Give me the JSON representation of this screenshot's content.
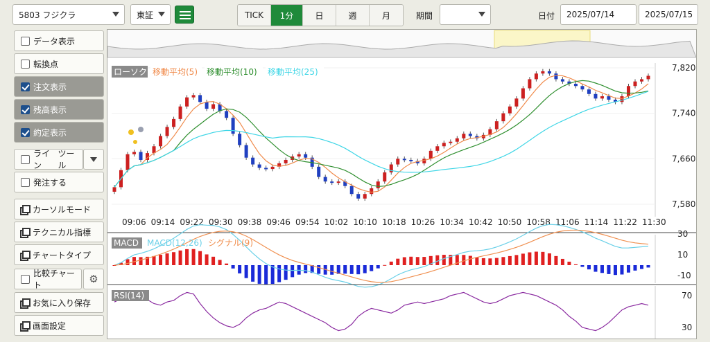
{
  "toolbar": {
    "stock_select": "5803 フジクラ",
    "market_select": "東証",
    "list_icon": "list-icon",
    "intervals": [
      "TICK",
      "1分",
      "日",
      "週",
      "月"
    ],
    "active_interval": "1分",
    "period_label": "期間",
    "period_value": "",
    "date_label": "日付",
    "date_from": "2025/07/14",
    "date_sep": "～",
    "date_to": "2025/07/15"
  },
  "sidebar": {
    "data_display": "データ表示",
    "turning_point": "転換点",
    "order_display": "注文表示",
    "position_display": "残高表示",
    "execution_display": "約定表示",
    "line_tool": "ライン",
    "tool_suffix": "ツール",
    "order": "発注する",
    "cursor_mode": "カーソルモード",
    "technical": "テクニカル指標",
    "chart_type": "チャートタイプ",
    "compare_chart": "比較チャート",
    "save_fav": "お気に入り保存",
    "screen_settings": "画面設定"
  },
  "colors": {
    "up": "#cc2020",
    "down": "#2040c0",
    "ma5": "#f08a4a",
    "ma10": "#2f8f2f",
    "ma25": "#3fd6e6",
    "macd": "#6ad0e8",
    "signal": "#f09050",
    "rsi": "#8a2aa0",
    "accent": "#1f8a3a"
  },
  "chart_data": {
    "type": "candlestick",
    "price_legend": [
      "ローソク",
      "移動平均(5)",
      "移動平均(10)",
      "移動平均(25)"
    ],
    "xticks": [
      "09:06",
      "09:14",
      "09:22",
      "09:30",
      "09:38",
      "09:46",
      "09:54",
      "10:02",
      "10:10",
      "10:18",
      "10:26",
      "10:34",
      "10:42",
      "10:50",
      "10:58",
      "11:06",
      "11:14",
      "11:22",
      "11:30"
    ],
    "yticks": [
      "7,820",
      "7,740",
      "7,660",
      "7,580"
    ],
    "price_path": [
      7610,
      7640,
      7668,
      7672,
      7658,
      7670,
      7682,
      7700,
      7716,
      7730,
      7752,
      7768,
      7772,
      7760,
      7748,
      7756,
      7744,
      7732,
      7704,
      7684,
      7662,
      7650,
      7644,
      7642,
      7646,
      7652,
      7658,
      7664,
      7668,
      7662,
      7646,
      7628,
      7620,
      7618,
      7620,
      7612,
      7598,
      7590,
      7598,
      7608,
      7620,
      7636,
      7650,
      7660,
      7658,
      7656,
      7652,
      7660,
      7674,
      7682,
      7688,
      7690,
      7696,
      7704,
      7700,
      7696,
      7702,
      7712,
      7726,
      7740,
      7752,
      7766,
      7784,
      7800,
      7810,
      7814,
      7810,
      7800,
      7796,
      7792,
      7788,
      7782,
      7774,
      7766,
      7770,
      7764,
      7760,
      7770,
      7788,
      7796,
      7800,
      7806
    ],
    "macd_legend": [
      "MACD",
      "MACD(12,26)",
      "シグナル(9)"
    ],
    "macd_yticks": [
      "30",
      "10",
      "-10"
    ],
    "rsi_legend": "RSI(14)",
    "rsi_yticks": [
      "70",
      "30"
    ],
    "rsi_path": [
      62,
      66,
      72,
      76,
      72,
      65,
      60,
      58,
      62,
      64,
      70,
      74,
      72,
      60,
      50,
      42,
      36,
      32,
      30,
      34,
      42,
      48,
      52,
      54,
      58,
      62,
      60,
      56,
      52,
      48,
      44,
      40,
      36,
      30,
      26,
      28,
      34,
      44,
      50,
      54,
      52,
      50,
      48,
      52,
      58,
      60,
      62,
      60,
      62,
      64,
      66,
      70,
      72,
      74,
      70,
      66,
      62,
      60,
      62,
      66,
      70,
      72,
      74,
      72,
      70,
      66,
      62,
      58,
      52,
      44,
      38,
      30,
      28,
      26,
      30,
      36,
      44,
      52,
      56,
      58,
      60,
      58
    ]
  }
}
